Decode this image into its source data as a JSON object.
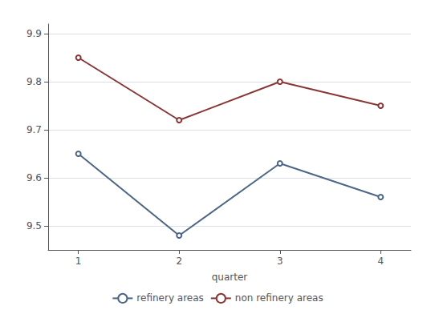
{
  "chart_data": {
    "type": "line",
    "x": [
      1,
      2,
      3,
      4
    ],
    "series": [
      {
        "name": "refinery areas",
        "color": "#4c6687",
        "values": [
          9.65,
          9.48,
          9.63,
          9.56
        ]
      },
      {
        "name": "non refinery areas",
        "color": "#8b3535",
        "values": [
          9.85,
          9.72,
          9.8,
          9.75
        ]
      }
    ],
    "xlabel": "quarter",
    "xlim": [
      0.7,
      4.3
    ],
    "xticks": [
      1,
      2,
      3,
      4
    ],
    "ylim": [
      9.45,
      9.92
    ],
    "yticks": [
      9.5,
      9.6,
      9.7,
      9.8,
      9.9
    ],
    "grid": true,
    "legend": "bottom"
  }
}
